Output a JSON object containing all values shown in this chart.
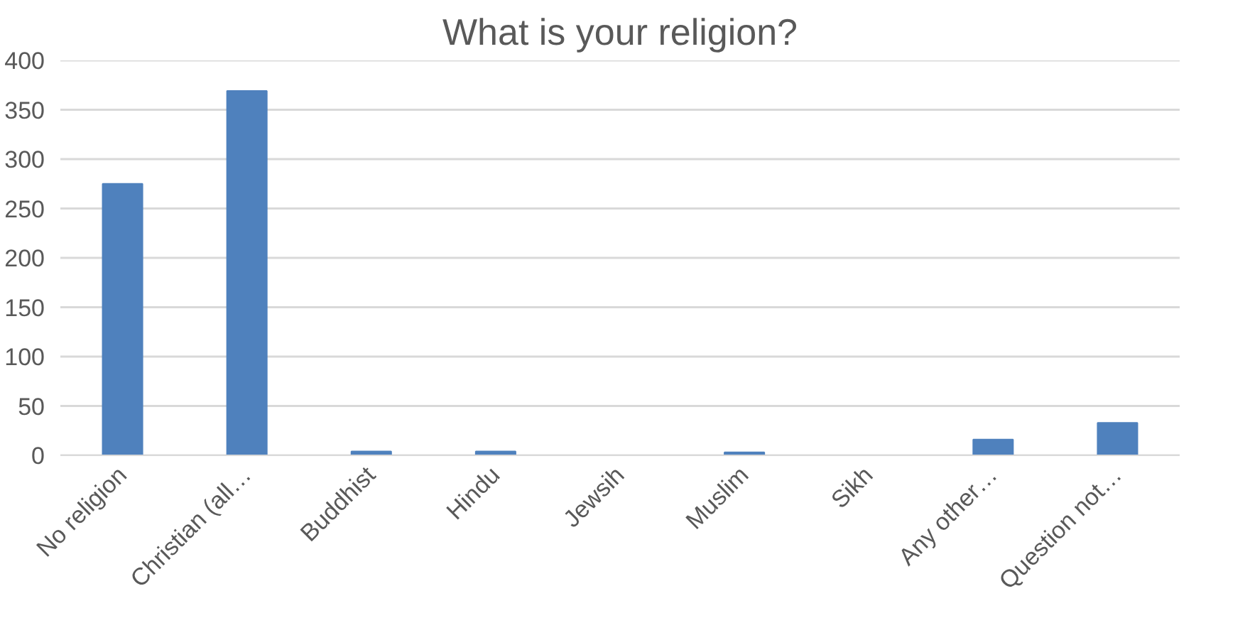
{
  "chart_data": {
    "type": "bar",
    "title": "What is your religion?",
    "categories": [
      "No religion",
      "Christian (all…",
      "Buddhist",
      "Hindu",
      "Jewsih",
      "Muslim",
      "Sikh",
      "Any other…",
      "Question not…"
    ],
    "values": [
      275,
      369,
      4,
      4,
      0,
      3,
      0,
      16,
      33
    ],
    "color": "#4f81bd",
    "ylim": [
      0,
      400
    ],
    "yticks": [
      0,
      50,
      100,
      150,
      200,
      250,
      300,
      350,
      400
    ],
    "grid": "y"
  }
}
